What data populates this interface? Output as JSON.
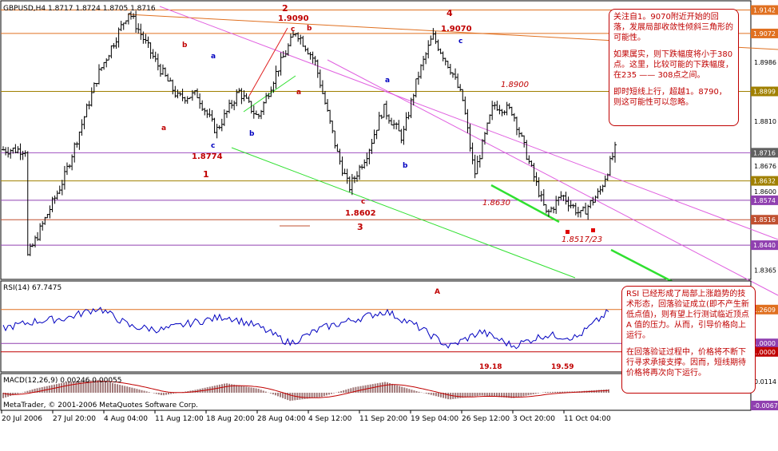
{
  "chart_data": [
    {
      "type": "candlestick",
      "title": "GBPUSD,H4  1.8717 1.8724 1.8705 1.8716",
      "ylim": [
        1.8345,
        1.916
      ],
      "y_ticks": [
        "1.9142",
        "1.9072",
        "1.8986",
        "1.8899",
        "1.8810",
        "1.8716",
        "1.8676",
        "1.8632",
        "1.8600",
        "1.8574",
        "1.8516",
        "1.8440",
        "1.8365"
      ],
      "price_badges": [
        {
          "label": "1.9142",
          "value": 1.9142,
          "color": "#e07020"
        },
        {
          "label": "1.9072",
          "value": 1.9072,
          "color": "#e07020"
        },
        {
          "label": "1.8899",
          "value": 1.8899,
          "color": "#a08000"
        },
        {
          "label": "1.8716",
          "value": 1.8716,
          "color": "#606060"
        },
        {
          "label": "1.8632",
          "value": 1.8632,
          "color": "#a08000"
        },
        {
          "label": "1.8574",
          "value": 1.8574,
          "color": "#9040b0"
        },
        {
          "label": "1.8516",
          "value": 1.8516,
          "color": "#c05030"
        },
        {
          "label": "1.8440",
          "value": 1.844,
          "color": "#9040b0"
        }
      ],
      "hlines": [
        {
          "value": 1.9142,
          "color": "#e07020"
        },
        {
          "value": 1.9072,
          "color": "#e07020"
        },
        {
          "value": 1.8899,
          "color": "#a08000"
        },
        {
          "value": 1.8716,
          "color": "#a050c0"
        },
        {
          "value": 1.8632,
          "color": "#a08000"
        },
        {
          "value": 1.8574,
          "color": "#9040b0"
        },
        {
          "value": 1.8516,
          "color": "#c05030"
        },
        {
          "value": 1.844,
          "color": "#9040b0"
        }
      ],
      "key_points": [
        {
          "t": 0.6,
          "v": 1.8395
        },
        {
          "t": 1.6,
          "v": 1.864
        },
        {
          "t": 2.5,
          "v": 1.895
        },
        {
          "t": 3.3,
          "v": 1.9138
        },
        {
          "t": 4.0,
          "v": 1.899
        },
        {
          "t": 4.6,
          "v": 1.888
        },
        {
          "t": 5.1,
          "v": 1.889
        },
        {
          "t": 5.6,
          "v": 1.878
        },
        {
          "t": 6.2,
          "v": 1.89
        },
        {
          "t": 6.7,
          "v": 1.882
        },
        {
          "t": 7.2,
          "v": 1.896
        },
        {
          "t": 7.7,
          "v": 1.908
        },
        {
          "t": 8.2,
          "v": 1.899
        },
        {
          "t": 8.8,
          "v": 1.871
        },
        {
          "t": 9.1,
          "v": 1.861
        },
        {
          "t": 9.6,
          "v": 1.872
        },
        {
          "t": 10.0,
          "v": 1.885
        },
        {
          "t": 10.5,
          "v": 1.876
        },
        {
          "t": 10.9,
          "v": 1.894
        },
        {
          "t": 11.3,
          "v": 1.9065
        },
        {
          "t": 11.8,
          "v": 1.896
        },
        {
          "t": 12.1,
          "v": 1.887
        },
        {
          "t": 12.4,
          "v": 1.865
        },
        {
          "t": 12.9,
          "v": 1.886
        },
        {
          "t": 13.4,
          "v": 1.884
        },
        {
          "t": 13.8,
          "v": 1.87
        },
        {
          "t": 14.3,
          "v": 1.853
        },
        {
          "t": 14.7,
          "v": 1.859
        },
        {
          "t": 15.2,
          "v": 1.853
        },
        {
          "t": 15.7,
          "v": 1.86
        },
        {
          "t": 16.1,
          "v": 1.8725
        }
      ],
      "x_ticks": [
        "20 Jul 2006",
        "27 Jul 20:00",
        "4 Aug 04:00",
        "11 Aug 12:00",
        "18 Aug 20:00",
        "28 Aug 04:00",
        "4 Sep 12:00",
        "11 Sep 20:00",
        "19 Sep 04:00",
        "26 Sep 12:00",
        "3 Oct 20:00",
        "11 Oct 04:00"
      ],
      "price_labels": [
        "1.9090",
        "1.9070",
        "1.8900",
        "1.8774",
        "1.8602",
        "1.8630",
        "1.8517/23"
      ],
      "wave_labels": [
        {
          "text": "2",
          "color": "#c00000"
        },
        {
          "text": "4",
          "color": "#c00000"
        },
        {
          "text": "1",
          "color": "#c00000"
        },
        {
          "text": "3",
          "color": "#c00000"
        },
        {
          "text": "b",
          "color": "#c00000"
        },
        {
          "text": "a",
          "color": "#0000c0"
        },
        {
          "text": "c",
          "color": "#0000c0"
        },
        {
          "text": "b",
          "color": "#c00000"
        },
        {
          "text": "a",
          "color": "#c00000"
        },
        {
          "text": "c",
          "color": "#c00000"
        },
        {
          "text": "b",
          "color": "#0000c0"
        },
        {
          "text": "a",
          "color": "#c00000"
        },
        {
          "text": "a",
          "color": "#0000c0"
        },
        {
          "text": "b",
          "color": "#0000c0"
        },
        {
          "text": "c",
          "color": "#c00000"
        },
        {
          "text": "c",
          "color": "#0000c0"
        }
      ]
    },
    {
      "type": "line",
      "title": "RSI(14) 67.7475",
      "ylim": [
        0,
        100
      ],
      "levels": [
        70,
        30,
        20
      ],
      "right_labels": [
        "1.2609",
        "1.0000",
        "1.0000"
      ],
      "annotations": [
        "A",
        "19.18",
        "19.59"
      ],
      "key_points": [
        {
          "t": 0,
          "v": 48
        },
        {
          "t": 1,
          "v": 56
        },
        {
          "t": 2,
          "v": 60
        },
        {
          "t": 3,
          "v": 72
        },
        {
          "t": 4,
          "v": 50
        },
        {
          "t": 5,
          "v": 46
        },
        {
          "t": 6,
          "v": 55
        },
        {
          "t": 7,
          "v": 62
        },
        {
          "t": 8,
          "v": 50
        },
        {
          "t": 9,
          "v": 30
        },
        {
          "t": 10,
          "v": 48
        },
        {
          "t": 11,
          "v": 58
        },
        {
          "t": 12,
          "v": 68
        },
        {
          "t": 13,
          "v": 50
        },
        {
          "t": 14,
          "v": 26
        },
        {
          "t": 15,
          "v": 44
        },
        {
          "t": 16,
          "v": 27
        },
        {
          "t": 17,
          "v": 40
        },
        {
          "t": 18,
          "v": 37
        },
        {
          "t": 19,
          "v": 67.7
        }
      ]
    },
    {
      "type": "histogram",
      "title": "MACD(12,26,9) 0.00246 0.00055",
      "right_labels": [
        "0.0114",
        "-0.0067"
      ],
      "note": "© 2001-2006 MetaQuotes Software Corp.",
      "key_points": [
        {
          "t": 0,
          "v": -0.004
        },
        {
          "t": 1,
          "v": 0.003
        },
        {
          "t": 2,
          "v": 0.008
        },
        {
          "t": 3,
          "v": 0.0095
        },
        {
          "t": 4,
          "v": 0.004
        },
        {
          "t": 5,
          "v": -0.002
        },
        {
          "t": 6,
          "v": 0.002
        },
        {
          "t": 7,
          "v": 0.007
        },
        {
          "t": 8,
          "v": 0.003
        },
        {
          "t": 9,
          "v": -0.006
        },
        {
          "t": 10,
          "v": -0.003
        },
        {
          "t": 11,
          "v": 0.004
        },
        {
          "t": 12,
          "v": 0.008
        },
        {
          "t": 13,
          "v": 0.001
        },
        {
          "t": 14,
          "v": -0.005
        },
        {
          "t": 15,
          "v": -0.002
        },
        {
          "t": 16,
          "v": -0.004
        },
        {
          "t": 17,
          "v": 0.0005
        },
        {
          "t": 18,
          "v": 0.001
        },
        {
          "t": 19,
          "v": 0.0025
        }
      ]
    }
  ],
  "footer_label": "MetaTrader, © 2001-2006 MetaQuotes Software Corp.",
  "note_top": {
    "p1": "关注自1。9070附近开始的回落，发展局部收敛性倾斜三角形的可能性。",
    "p2": "如果属实，则下跌幅度将小于380点。这里，比较可能的下跌幅度，在235 —— 308点之间。",
    "p3": "即时短线上行，超越1。8790，则这可能性可以忽略。"
  },
  "note_bottom": {
    "p1": "RSI 已经形成了局部上涨趋势的技术形态，回落验证成立(即不产生新低点值)，则有望上行测试临近顶点 A 值的压力。从而，引导价格向上运行。",
    "p2": "在回落验证过程中，价格将不断下行寻求承接支撑。因而，短线期待价格将再次向下运行。"
  }
}
